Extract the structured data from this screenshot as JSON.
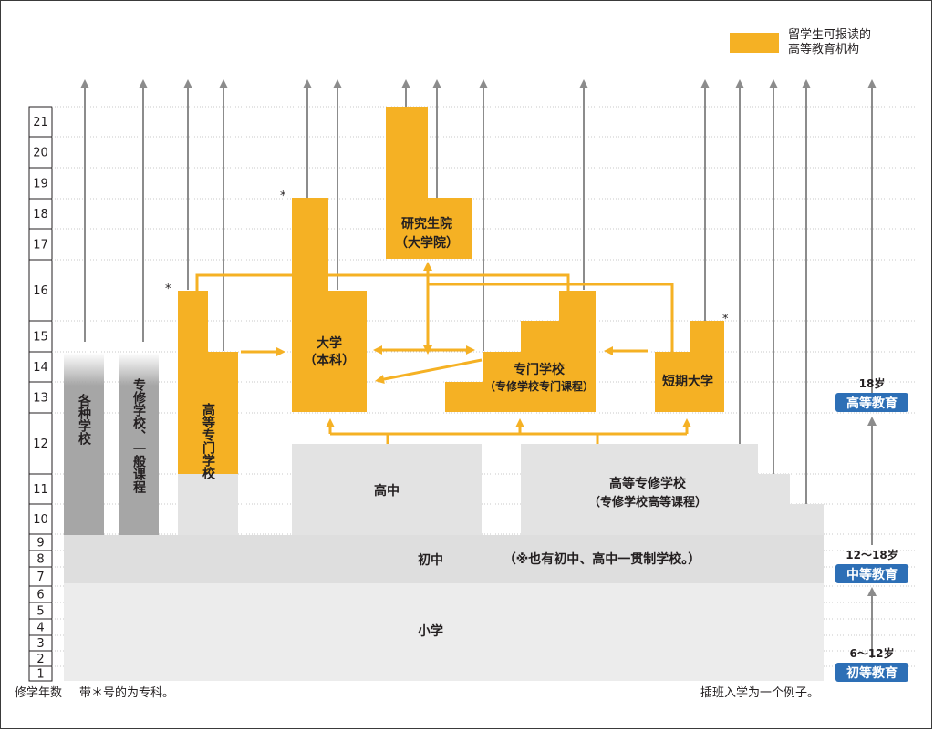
{
  "colors": {
    "accent": "#f5b124",
    "gray_light": "#e5e5e5",
    "gray_mid": "#aaaaaa",
    "arrow_gray": "#8c8c8c",
    "badge_blue": "#2d6fb6"
  },
  "legend": {
    "label_line1": "留学生可报读的",
    "label_line2": "高等教育机构"
  },
  "years": [
    "1",
    "2",
    "3",
    "4",
    "5",
    "6",
    "7",
    "8",
    "9",
    "10",
    "11",
    "12",
    "13",
    "14",
    "15",
    "16",
    "17",
    "18",
    "19",
    "20",
    "21"
  ],
  "institutions": {
    "graduate_school": {
      "line1": "研究生院",
      "line2": "（大学院）"
    },
    "university": {
      "line1": "大学",
      "line2": "（本科）"
    },
    "vocational_college": {
      "line1": "专门学校",
      "line2": "（专修学校专门课程）"
    },
    "junior_college": {
      "label": "短期大学"
    },
    "college_of_technology": {
      "label": "高等专门学校"
    },
    "misc_schools": {
      "label": "各种学校"
    },
    "specialized_general": {
      "label": "专修学校、一般课程"
    },
    "high_school": {
      "label": "高中"
    },
    "upper_specialized": {
      "line1": "高等专修学校",
      "line2": "（专修学校高等课程）"
    },
    "junior_high": {
      "label": "初中"
    },
    "integrated_note": {
      "label": "（※也有初中、高中一贯制学校。）"
    },
    "elementary": {
      "label": "小学"
    }
  },
  "stages": [
    {
      "age": "18岁",
      "label": "高等教育"
    },
    {
      "age": "12～18岁",
      "label": "中等教育"
    },
    {
      "age": "6～12岁",
      "label": "初等教育"
    }
  ],
  "star_mark": "*",
  "footer": {
    "years_label": "修学年数",
    "star_note": "带＊号的为专科。",
    "transfer_note": "插班入学为一个例子。"
  }
}
